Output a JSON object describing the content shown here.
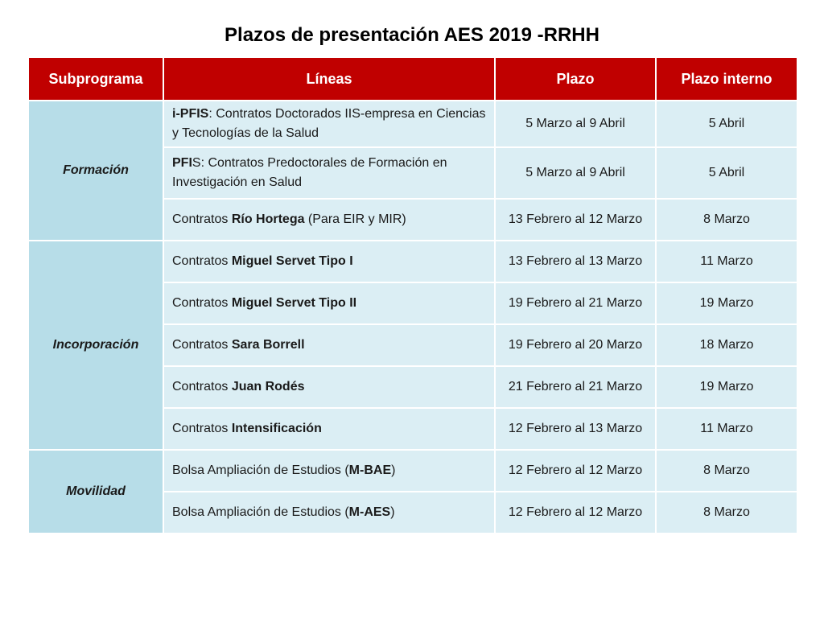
{
  "title": "Plazos de presentación AES 2019 -RRHH",
  "colors": {
    "header_bg": "#c00000",
    "subprogram_bg": "#b7dde8",
    "cell_bg": "#dbeef4"
  },
  "table": {
    "headers": [
      "Subprograma",
      "Líneas",
      "Plazo",
      "Plazo interno"
    ],
    "groups": [
      {
        "subprogram": "Formación",
        "rows": [
          {
            "line": [
              {
                "text": "i-PFIS",
                "bold": true
              },
              {
                "text": ": Contratos Doctorados IIS-empresa en Ciencias y Tecnologías de la Salud",
                "bold": false
              }
            ],
            "deadline": "5 Marzo al 9 Abril",
            "internal": "5 Abril"
          },
          {
            "line": [
              {
                "text": "PFI",
                "bold": true
              },
              {
                "text": "S: Contratos Predoctorales de Formación en Investigación en Salud",
                "bold": false
              }
            ],
            "deadline": "5 Marzo al 9 Abril",
            "internal": "5 Abril"
          },
          {
            "line": [
              {
                "text": "Contratos ",
                "bold": false
              },
              {
                "text": "Río Hortega",
                "bold": true
              },
              {
                "text": " (Para EIR y MIR)",
                "bold": false
              }
            ],
            "deadline": "13 Febrero al 12 Marzo",
            "internal": "8 Marzo"
          }
        ]
      },
      {
        "subprogram": "Incorporación",
        "rows": [
          {
            "line": [
              {
                "text": "Contratos ",
                "bold": false
              },
              {
                "text": "Miguel Servet Tipo  I",
                "bold": true
              }
            ],
            "deadline": "13 Febrero al 13 Marzo",
            "internal": "11 Marzo"
          },
          {
            "line": [
              {
                "text": "Contratos ",
                "bold": false
              },
              {
                "text": "Miguel Servet Tipo II",
                "bold": true
              }
            ],
            "deadline": "19 Febrero al 21 Marzo",
            "internal": "19 Marzo"
          },
          {
            "line": [
              {
                "text": "Contratos ",
                "bold": false
              },
              {
                "text": "Sara Borrell",
                "bold": true
              }
            ],
            "deadline": "19 Febrero al 20 Marzo",
            "internal": "18 Marzo"
          },
          {
            "line": [
              {
                "text": "Contratos ",
                "bold": false
              },
              {
                "text": "Juan Rodés",
                "bold": true
              }
            ],
            "deadline": "21 Febrero al 21 Marzo",
            "internal": "19 Marzo"
          },
          {
            "line": [
              {
                "text": "Contratos ",
                "bold": false
              },
              {
                "text": "Intensificación",
                "bold": true
              }
            ],
            "deadline": "12 Febrero al 13 Marzo",
            "internal": "11 Marzo"
          }
        ]
      },
      {
        "subprogram": "Movilidad",
        "rows": [
          {
            "line": [
              {
                "text": "Bolsa Ampliación de Estudios (",
                "bold": false
              },
              {
                "text": "M-BAE",
                "bold": true
              },
              {
                "text": ")",
                "bold": false
              }
            ],
            "deadline": "12 Febrero al 12 Marzo",
            "internal": "8 Marzo"
          },
          {
            "line": [
              {
                "text": "Bolsa Ampliación de Estudios  (",
                "bold": false
              },
              {
                "text": "M-AES",
                "bold": true
              },
              {
                "text": ")",
                "bold": false
              }
            ],
            "deadline": "12 Febrero al 12 Marzo",
            "internal": "8 Marzo"
          }
        ]
      }
    ]
  }
}
